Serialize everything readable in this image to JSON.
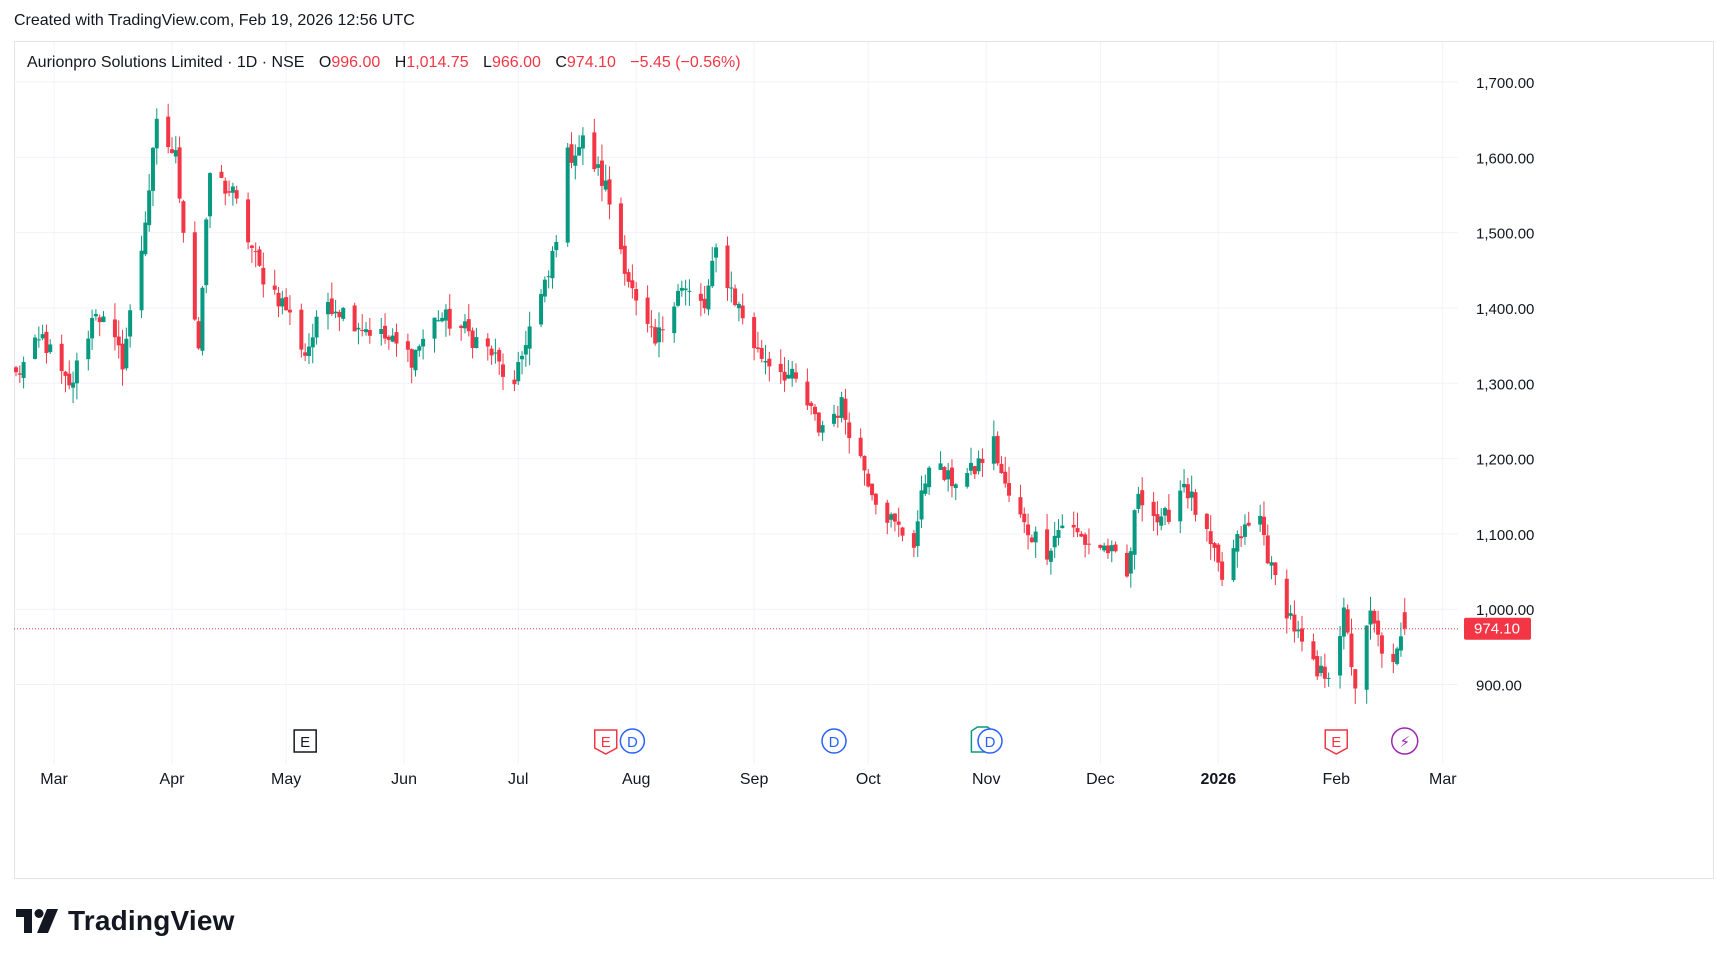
{
  "header": {
    "created_text": "Created with TradingView.com, Feb 19, 2026 12:56 UTC"
  },
  "legend": {
    "symbol": "Aurionpro Solutions Limited · 1D · NSE",
    "o_label": "O",
    "o_value": "996.00",
    "h_label": "H",
    "h_value": "1,014.75",
    "l_label": "L",
    "l_value": "966.00",
    "c_label": "C",
    "c_value": "974.10",
    "change": "−5.45 (−0.56%)"
  },
  "brand": {
    "name": "TradingView"
  },
  "colors": {
    "up": "#089981",
    "down": "#f23645",
    "grid": "#f0f3fa",
    "text": "#131722",
    "earnings": "#f23645",
    "dividend": "#2962ff",
    "split": "#9c27b0"
  },
  "chart_data": {
    "type": "candlestick",
    "ylim": [
      830,
      1730
    ],
    "y_ticks": [
      900,
      1000,
      1100,
      1200,
      1300,
      1400,
      1500,
      1600,
      1700
    ],
    "y_tick_labels": [
      "900.00",
      "1,000.00",
      "1,100.00",
      "1,200.00",
      "1,300.00",
      "1,400.00",
      "1,500.00",
      "1,600.00",
      "1,700.00"
    ],
    "x_range": [
      "2025-02-19",
      "2026-03-05"
    ],
    "x_ticks": [
      {
        "date": "2025-03-01",
        "label": "Mar"
      },
      {
        "date": "2025-04-01",
        "label": "Apr"
      },
      {
        "date": "2025-05-01",
        "label": "May"
      },
      {
        "date": "2025-06-01",
        "label": "Jun"
      },
      {
        "date": "2025-07-01",
        "label": "Jul"
      },
      {
        "date": "2025-08-01",
        "label": "Aug"
      },
      {
        "date": "2025-09-01",
        "label": "Sep"
      },
      {
        "date": "2025-10-01",
        "label": "Oct"
      },
      {
        "date": "2025-11-01",
        "label": "Nov"
      },
      {
        "date": "2025-12-01",
        "label": "Dec"
      },
      {
        "date": "2026-01-01",
        "label": "2026"
      },
      {
        "date": "2026-02-01",
        "label": "Feb"
      },
      {
        "date": "2026-03-01",
        "label": "Mar"
      }
    ],
    "bold_tick_label": "2026",
    "last_price": 974.1,
    "last_price_label": "974.10",
    "event_markers": [
      {
        "date": "2025-05-06",
        "type": "earnings",
        "label": "E",
        "style": "neutral"
      },
      {
        "date": "2025-07-24",
        "type": "earnings",
        "label": "E",
        "style": "negative"
      },
      {
        "date": "2025-07-31",
        "type": "dividend",
        "label": "D"
      },
      {
        "date": "2025-09-22",
        "type": "dividend",
        "label": "D"
      },
      {
        "date": "2025-10-31",
        "type": "earnings",
        "label": "E",
        "style": "positive"
      },
      {
        "date": "2025-11-02",
        "type": "dividend",
        "label": "D"
      },
      {
        "date": "2026-02-01",
        "type": "earnings",
        "label": "E",
        "style": "negative"
      },
      {
        "date": "2026-02-19",
        "type": "split",
        "label": "⚡"
      }
    ],
    "anchors": [
      [
        "2025-02-19",
        1310
      ],
      [
        "2025-02-26",
        1360
      ],
      [
        "2025-03-05",
        1290
      ],
      [
        "2025-03-12",
        1400
      ],
      [
        "2025-03-19",
        1330
      ],
      [
        "2025-03-24",
        1480
      ],
      [
        "2025-03-28",
        1640
      ],
      [
        "2025-04-02",
        1600
      ],
      [
        "2025-04-04",
        1510
      ],
      [
        "2025-04-08",
        1350
      ],
      [
        "2025-04-11",
        1580
      ],
      [
        "2025-04-17",
        1550
      ],
      [
        "2025-04-24",
        1450
      ],
      [
        "2025-05-01",
        1400
      ],
      [
        "2025-05-06",
        1340
      ],
      [
        "2025-05-12",
        1410
      ],
      [
        "2025-05-20",
        1380
      ],
      [
        "2025-05-27",
        1360
      ],
      [
        "2025-06-03",
        1335
      ],
      [
        "2025-06-10",
        1390
      ],
      [
        "2025-06-17",
        1370
      ],
      [
        "2025-06-24",
        1340
      ],
      [
        "2025-06-30",
        1290
      ],
      [
        "2025-07-03",
        1360
      ],
      [
        "2025-07-09",
        1440
      ],
      [
        "2025-07-11",
        1500
      ],
      [
        "2025-07-14",
        1600
      ],
      [
        "2025-07-18",
        1620
      ],
      [
        "2025-07-24",
        1560
      ],
      [
        "2025-07-28",
        1480
      ],
      [
        "2025-08-01",
        1400
      ],
      [
        "2025-08-06",
        1350
      ],
      [
        "2025-08-12",
        1430
      ],
      [
        "2025-08-19",
        1400
      ],
      [
        "2025-08-22",
        1475
      ],
      [
        "2025-08-28",
        1400
      ],
      [
        "2025-09-02",
        1340
      ],
      [
        "2025-09-08",
        1320
      ],
      [
        "2025-09-12",
        1300
      ],
      [
        "2025-09-18",
        1240
      ],
      [
        "2025-09-24",
        1270
      ],
      [
        "2025-09-29",
        1200
      ],
      [
        "2025-10-03",
        1150
      ],
      [
        "2025-10-08",
        1110
      ],
      [
        "2025-10-13",
        1090
      ],
      [
        "2025-10-17",
        1200
      ],
      [
        "2025-10-22",
        1170
      ],
      [
        "2025-10-28",
        1180
      ],
      [
        "2025-11-03",
        1220
      ],
      [
        "2025-11-06",
        1160
      ],
      [
        "2025-11-11",
        1110
      ],
      [
        "2025-11-17",
        1080
      ],
      [
        "2025-11-21",
        1115
      ],
      [
        "2025-11-27",
        1090
      ],
      [
        "2025-12-03",
        1080
      ],
      [
        "2025-12-08",
        1040
      ],
      [
        "2025-12-11",
        1160
      ],
      [
        "2025-12-17",
        1110
      ],
      [
        "2025-12-23",
        1170
      ],
      [
        "2025-12-30",
        1080
      ],
      [
        "2026-01-02",
        1040
      ],
      [
        "2026-01-07",
        1100
      ],
      [
        "2026-01-12",
        1120
      ],
      [
        "2026-01-15",
        1050
      ],
      [
        "2026-01-20",
        990
      ],
      [
        "2026-01-23",
        950
      ],
      [
        "2026-01-27",
        910
      ],
      [
        "2026-01-30",
        920
      ],
      [
        "2026-02-03",
        990
      ],
      [
        "2026-02-06",
        900
      ],
      [
        "2026-02-10",
        990
      ],
      [
        "2026-02-12",
        960
      ],
      [
        "2026-02-16",
        920
      ],
      [
        "2026-02-19",
        974
      ]
    ]
  }
}
